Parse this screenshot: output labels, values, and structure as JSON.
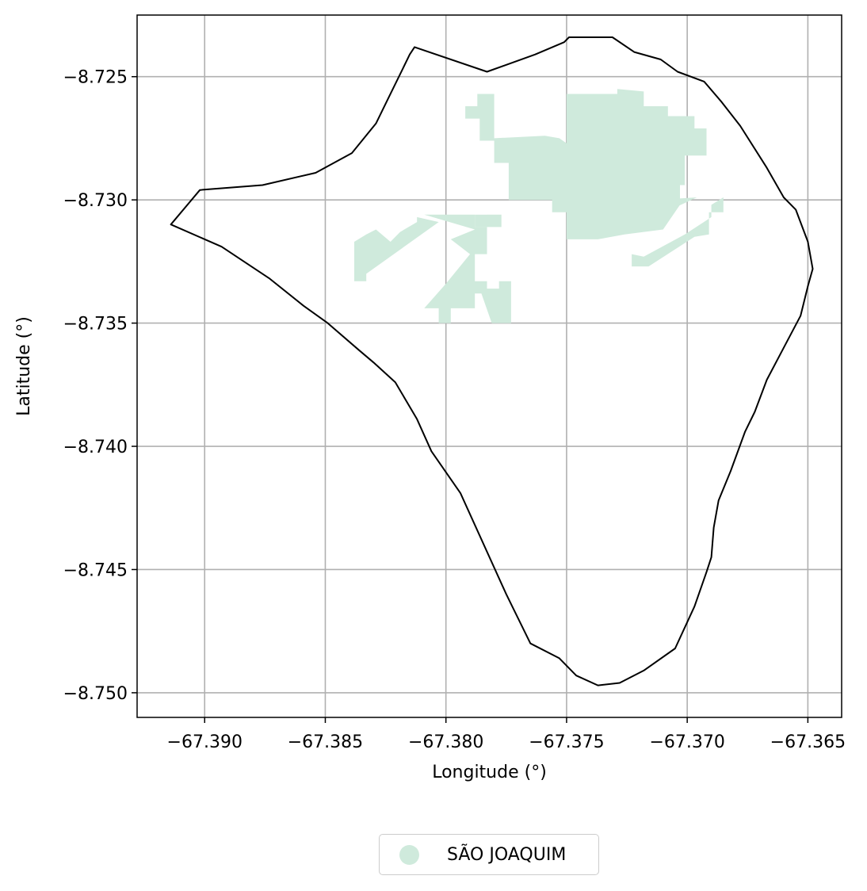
{
  "map": {
    "xlabel": "Longitude (°)",
    "ylabel": "Latitude (°)",
    "xlim": [
      -67.3928,
      -67.3636
    ],
    "ylim": [
      -8.751,
      -8.7225
    ],
    "grid": true,
    "x_ticks": [
      {
        "value": -67.39,
        "label": "−67.390"
      },
      {
        "value": -67.385,
        "label": "−67.385"
      },
      {
        "value": -67.38,
        "label": "−67.380"
      },
      {
        "value": -67.375,
        "label": "−67.375"
      },
      {
        "value": -67.37,
        "label": "−67.370"
      },
      {
        "value": -67.365,
        "label": "−67.365"
      }
    ],
    "y_ticks": [
      {
        "value": -8.725,
        "label": "−8.725"
      },
      {
        "value": -8.73,
        "label": "−8.730"
      },
      {
        "value": -8.735,
        "label": "−8.735"
      },
      {
        "value": -8.74,
        "label": "−8.740"
      },
      {
        "value": -8.745,
        "label": "−8.745"
      },
      {
        "value": -8.75,
        "label": "−8.750"
      }
    ],
    "boundary_color": "#000000",
    "settlement_color": "#cfeadc",
    "legend": {
      "label": "SÃO JOAQUIM",
      "placement": "bottom-center, below plot"
    },
    "boundary": [
      [
        -67.3914,
        -8.731
      ],
      [
        -67.3902,
        -8.7296
      ],
      [
        -67.3876,
        -8.7294
      ],
      [
        -67.3854,
        -8.7289
      ],
      [
        -67.3839,
        -8.7281
      ],
      [
        -67.3829,
        -8.7269
      ],
      [
        -67.3824,
        -8.7259
      ],
      [
        -67.3818,
        -8.7247
      ],
      [
        -67.3815,
        -8.7241
      ],
      [
        -67.3813,
        -8.7238
      ],
      [
        -67.3783,
        -8.7248
      ],
      [
        -67.3763,
        -8.7241
      ],
      [
        -67.3751,
        -8.7236
      ],
      [
        -67.3749,
        -8.7234
      ],
      [
        -67.3731,
        -8.7234
      ],
      [
        -67.3722,
        -8.724
      ],
      [
        -67.3711,
        -8.7243
      ],
      [
        -67.3704,
        -8.7248
      ],
      [
        -67.3693,
        -8.7252
      ],
      [
        -67.3686,
        -8.726
      ],
      [
        -67.3678,
        -8.727
      ],
      [
        -67.3667,
        -8.7287
      ],
      [
        -67.366,
        -8.7299
      ],
      [
        -67.3655,
        -8.7304
      ],
      [
        -67.365,
        -8.7317
      ],
      [
        -67.3648,
        -8.7328
      ],
      [
        -67.365,
        -8.7335
      ],
      [
        -67.3653,
        -8.7347
      ],
      [
        -67.366,
        -8.736
      ],
      [
        -67.3667,
        -8.7373
      ],
      [
        -67.3672,
        -8.7386
      ],
      [
        -67.3676,
        -8.7394
      ],
      [
        -67.3682,
        -8.741
      ],
      [
        -67.3687,
        -8.7422
      ],
      [
        -67.3689,
        -8.7433
      ],
      [
        -67.369,
        -8.7445
      ],
      [
        -67.3692,
        -8.7451
      ],
      [
        -67.3697,
        -8.7465
      ],
      [
        -67.3705,
        -8.7482
      ],
      [
        -67.3718,
        -8.7491
      ],
      [
        -67.3728,
        -8.7496
      ],
      [
        -67.3737,
        -8.7497
      ],
      [
        -67.3746,
        -8.7493
      ],
      [
        -67.3753,
        -8.7486
      ],
      [
        -67.3765,
        -8.748
      ],
      [
        -67.3775,
        -8.746
      ],
      [
        -67.3794,
        -8.7419
      ],
      [
        -67.3806,
        -8.7402
      ],
      [
        -67.3812,
        -8.7389
      ],
      [
        -67.3821,
        -8.7374
      ],
      [
        -67.383,
        -8.7366
      ],
      [
        -67.3836,
        -8.7361
      ],
      [
        -67.3849,
        -8.735
      ],
      [
        -67.3859,
        -8.7343
      ],
      [
        -67.3873,
        -8.7332
      ],
      [
        -67.3893,
        -8.7319
      ],
      [
        -67.3914,
        -8.731
      ]
    ],
    "settlement_polygons": [
      [
        [
          -67.3729,
          -8.7255
        ],
        [
          -67.3718,
          -8.7256
        ],
        [
          -67.3718,
          -8.7262
        ],
        [
          -67.3708,
          -8.7262
        ],
        [
          -67.3708,
          -8.7266
        ],
        [
          -67.3697,
          -8.7266
        ],
        [
          -67.3697,
          -8.7271
        ],
        [
          -67.3692,
          -8.7271
        ],
        [
          -67.3692,
          -8.7282
        ],
        [
          -67.3701,
          -8.7282
        ],
        [
          -67.3701,
          -8.7294
        ],
        [
          -67.3703,
          -8.7294
        ],
        [
          -67.3703,
          -8.7302
        ],
        [
          -67.371,
          -8.7312
        ],
        [
          -67.3726,
          -8.7314
        ],
        [
          -67.3737,
          -8.7316
        ],
        [
          -67.375,
          -8.7316
        ],
        [
          -67.375,
          -8.7305
        ],
        [
          -67.3756,
          -8.7305
        ],
        [
          -67.3756,
          -8.73
        ],
        [
          -67.3774,
          -8.73
        ],
        [
          -67.3774,
          -8.7285
        ],
        [
          -67.378,
          -8.7285
        ],
        [
          -67.378,
          -8.7257
        ],
        [
          -67.3787,
          -8.7257
        ],
        [
          -67.3787,
          -8.7262
        ],
        [
          -67.3792,
          -8.7262
        ],
        [
          -67.3792,
          -8.7267
        ],
        [
          -67.3786,
          -8.7267
        ],
        [
          -67.3786,
          -8.7276
        ],
        [
          -67.378,
          -8.7276
        ],
        [
          -67.378,
          -8.7275
        ],
        [
          -67.3759,
          -8.7274
        ],
        [
          -67.3753,
          -8.7275
        ],
        [
          -67.375,
          -8.7277
        ],
        [
          -67.375,
          -8.7257
        ],
        [
          -67.3729,
          -8.7257
        ]
      ],
      [
        [
          -67.3783,
          -8.7306
        ],
        [
          -67.3777,
          -8.7306
        ],
        [
          -67.3777,
          -8.7311
        ],
        [
          -67.3783,
          -8.7311
        ]
      ],
      [
        [
          -67.3788,
          -8.7306
        ],
        [
          -67.3783,
          -8.7306
        ],
        [
          -67.3783,
          -8.7311
        ],
        [
          -67.3788,
          -8.7311
        ]
      ],
      [
        [
          -67.3809,
          -8.7306
        ],
        [
          -67.3788,
          -8.7306
        ],
        [
          -67.3788,
          -8.7311
        ],
        [
          -67.3783,
          -8.7311
        ],
        [
          -67.3783,
          -8.7322
        ],
        [
          -67.3788,
          -8.7322
        ],
        [
          -67.3788,
          -8.7333
        ],
        [
          -67.3783,
          -8.7333
        ],
        [
          -67.3783,
          -8.7338
        ],
        [
          -67.3788,
          -8.7338
        ],
        [
          -67.3788,
          -8.7344
        ],
        [
          -67.3798,
          -8.7344
        ],
        [
          -67.3798,
          -8.735
        ],
        [
          -67.3803,
          -8.735
        ],
        [
          -67.3803,
          -8.7344
        ],
        [
          -67.3809,
          -8.7344
        ],
        [
          -67.38,
          -8.7334
        ],
        [
          -67.379,
          -8.7322
        ],
        [
          -67.3798,
          -8.7316
        ],
        [
          -67.3788,
          -8.7312
        ],
        [
          -67.3809,
          -8.7306
        ]
      ],
      [
        [
          -67.3803,
          -8.7309
        ],
        [
          -67.3812,
          -8.7307
        ],
        [
          -67.3812,
          -8.7309
        ],
        [
          -67.3819,
          -8.7313
        ],
        [
          -67.3823,
          -8.7317
        ],
        [
          -67.3829,
          -8.7312
        ],
        [
          -67.3833,
          -8.7314
        ],
        [
          -67.3838,
          -8.7317
        ],
        [
          -67.3838,
          -8.7333
        ],
        [
          -67.3833,
          -8.7333
        ],
        [
          -67.3833,
          -8.733
        ]
      ],
      [
        [
          -67.3786,
          -8.7336
        ],
        [
          -67.3778,
          -8.7336
        ],
        [
          -67.3778,
          -8.7333
        ],
        [
          -67.3773,
          -8.7333
        ],
        [
          -67.3773,
          -8.735
        ],
        [
          -67.3781,
          -8.735
        ]
      ],
      [
        [
          -67.3784,
          -8.7337
        ],
        [
          -67.3781,
          -8.7337
        ],
        [
          -67.3781,
          -8.7341
        ],
        [
          -67.3784,
          -8.7341
        ]
      ],
      [
        [
          -67.3696,
          -8.7299
        ],
        [
          -67.3713,
          -8.73
        ],
        [
          -67.3714,
          -8.7312
        ],
        [
          -67.3729,
          -8.7314
        ]
      ],
      [
        [
          -67.3685,
          -8.7299
        ],
        [
          -67.369,
          -8.7302
        ],
        [
          -67.369,
          -8.7307
        ],
        [
          -67.3701,
          -8.7314
        ],
        [
          -67.3718,
          -8.7323
        ],
        [
          -67.3723,
          -8.7322
        ],
        [
          -67.3723,
          -8.7327
        ],
        [
          -67.3716,
          -8.7327
        ],
        [
          -67.3697,
          -8.7315
        ],
        [
          -67.3691,
          -8.7314
        ],
        [
          -67.3691,
          -8.7305
        ],
        [
          -67.3685,
          -8.7305
        ]
      ]
    ]
  }
}
